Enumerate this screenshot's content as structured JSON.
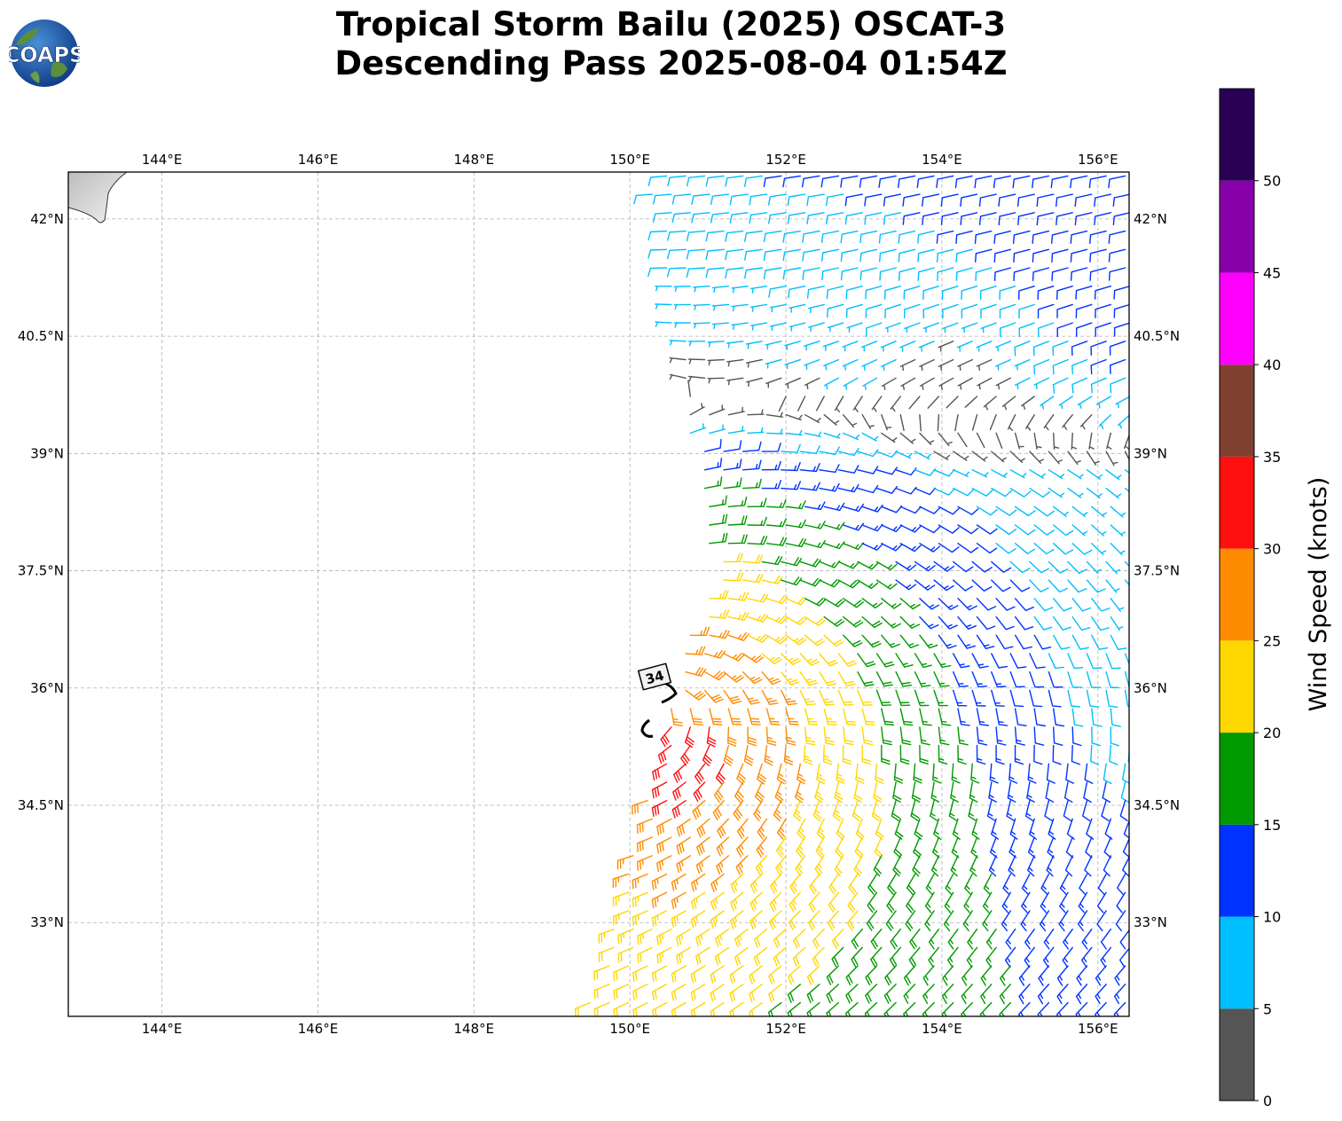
{
  "title": {
    "line1": "Tropical Storm Bailu (2025) OSCAT-3",
    "line2": "Descending Pass 2025-08-04 01:54Z"
  },
  "logo": {
    "text": "COAPS",
    "icon": "globe-logo-icon"
  },
  "map": {
    "lon_range": [
      142.8,
      156.4
    ],
    "lat_range": [
      31.8,
      42.6
    ],
    "x_ticks": [
      "144°E",
      "146°E",
      "148°E",
      "150°E",
      "152°E",
      "154°E",
      "156°E"
    ],
    "y_ticks": [
      "42°N",
      "40.5°N",
      "39°N",
      "37.5°N",
      "36°N",
      "34.5°N",
      "33°N"
    ],
    "grid": true,
    "land_color": "#e0e0e0",
    "center_marker_label": "34"
  },
  "colorbar": {
    "label": "Wind Speed (knots)",
    "ticks": [
      "0",
      "5",
      "10",
      "15",
      "20",
      "25",
      "30",
      "35",
      "40",
      "45",
      "50"
    ],
    "colors": [
      "#555555",
      "#00bfff",
      "#0033ff",
      "#009900",
      "#ffd700",
      "#ff8c00",
      "#ff1010",
      "#804030",
      "#ff00ff",
      "#8800aa",
      "#2a0055"
    ]
  },
  "chart_data": {
    "type": "wind-barbs",
    "units": "knots",
    "swath": "OSCAT-3 descending pass",
    "bins": [
      0,
      5,
      10,
      15,
      20,
      25,
      30,
      35,
      40,
      45,
      50,
      55
    ]
  }
}
